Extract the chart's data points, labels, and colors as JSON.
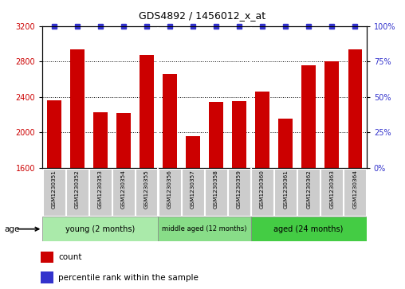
{
  "title": "GDS4892 / 1456012_x_at",
  "samples": [
    "GSM1230351",
    "GSM1230352",
    "GSM1230353",
    "GSM1230354",
    "GSM1230355",
    "GSM1230356",
    "GSM1230357",
    "GSM1230358",
    "GSM1230359",
    "GSM1230360",
    "GSM1230361",
    "GSM1230362",
    "GSM1230363",
    "GSM1230364"
  ],
  "counts": [
    2360,
    2940,
    2230,
    2220,
    2870,
    2660,
    1960,
    2340,
    2350,
    2460,
    2150,
    2760,
    2800,
    2940
  ],
  "percentile_ranks": [
    100,
    100,
    100,
    100,
    100,
    100,
    100,
    100,
    100,
    100,
    100,
    100,
    100,
    100
  ],
  "bar_color": "#cc0000",
  "dot_color": "#3333cc",
  "ylim_left": [
    1600,
    3200
  ],
  "ylim_right": [
    0,
    100
  ],
  "yticks_left": [
    1600,
    2000,
    2400,
    2800,
    3200
  ],
  "yticks_right": [
    0,
    25,
    50,
    75,
    100
  ],
  "groups": [
    {
      "label": "young (2 months)",
      "start": 0,
      "end": 5,
      "color": "#aaeaaa"
    },
    {
      "label": "middle aged (12 months)",
      "start": 5,
      "end": 9,
      "color": "#88dd88"
    },
    {
      "label": "aged (24 months)",
      "start": 9,
      "end": 14,
      "color": "#44cc44"
    }
  ],
  "age_label": "age",
  "legend_count_label": "count",
  "legend_pct_label": "percentile rank within the sample",
  "tick_bg_color": "#cccccc"
}
